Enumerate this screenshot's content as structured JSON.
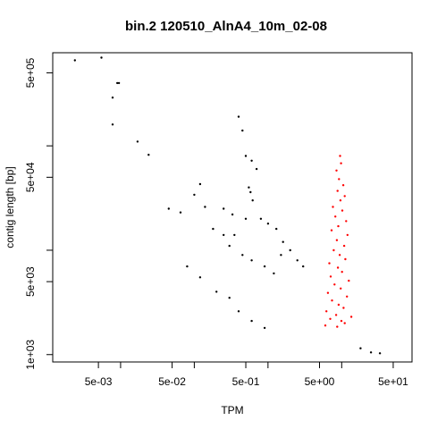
{
  "chart_data": {
    "type": "scatter",
    "title": "bin.2 120510_AlnA4_10m_02-08",
    "xlabel": "TPM",
    "ylabel": "contig length [bp]",
    "xscale": "log",
    "yscale": "log",
    "xlim": [
      0.0012,
      90
    ],
    "ylim": [
      850,
      780000
    ],
    "xticks": [
      {
        "value": 0.005,
        "label": "5e-03"
      },
      {
        "value": 0.05,
        "label": "5e-02"
      },
      {
        "value": 0.5,
        "label": "5e-01"
      },
      {
        "value": 5,
        "label": "5e+00"
      },
      {
        "value": 50,
        "label": "5e+01"
      }
    ],
    "xminor": [
      0.01,
      0.1,
      1,
      10
    ],
    "yticks": [
      {
        "value": 1000,
        "label": "1e+03"
      },
      {
        "value": 5000,
        "label": "5e+03"
      },
      {
        "value": 50000,
        "label": "5e+04"
      },
      {
        "value": 500000,
        "label": "5e+05"
      }
    ],
    "yminor": [
      10000,
      100000
    ],
    "grid": false,
    "legend": "none",
    "colors": {
      "default": "#000000",
      "highlight": "#ff0000"
    },
    "series": [
      {
        "color": "#000000",
        "points": [
          [
            0.0024,
            660000
          ],
          [
            0.0055,
            700000
          ],
          [
            0.009,
            400000
          ],
          [
            0.0095,
            400000
          ],
          [
            0.0078,
            290000
          ],
          [
            0.0078,
            160000
          ],
          [
            0.017,
            110000
          ],
          [
            0.024,
            82000
          ],
          [
            0.045,
            25000
          ],
          [
            0.065,
            23000
          ],
          [
            0.1,
            34000
          ],
          [
            0.14,
            26000
          ],
          [
            0.25,
            25000
          ],
          [
            0.33,
            22000
          ],
          [
            0.4,
            190000
          ],
          [
            0.45,
            140000
          ],
          [
            0.5,
            80000
          ],
          [
            0.6,
            72000
          ],
          [
            0.7,
            60000
          ],
          [
            0.55,
            40000
          ],
          [
            0.58,
            36000
          ],
          [
            0.62,
            30000
          ],
          [
            0.12,
            43000
          ],
          [
            0.18,
            16000
          ],
          [
            0.25,
            14000
          ],
          [
            0.35,
            14000
          ],
          [
            0.5,
            20000
          ],
          [
            0.8,
            20000
          ],
          [
            1.0,
            18000
          ],
          [
            1.3,
            16000
          ],
          [
            1.6,
            12000
          ],
          [
            2.0,
            10000
          ],
          [
            0.3,
            11000
          ],
          [
            0.45,
            9000
          ],
          [
            0.6,
            8000
          ],
          [
            0.9,
            7000
          ],
          [
            1.2,
            6000
          ],
          [
            1.5,
            9000
          ],
          [
            2.5,
            8000
          ],
          [
            3.0,
            7000
          ],
          [
            18,
            1150
          ],
          [
            25,
            1050
          ],
          [
            33,
            1030
          ],
          [
            0.08,
            7000
          ],
          [
            0.12,
            5500
          ],
          [
            0.2,
            4000
          ],
          [
            0.3,
            3500
          ],
          [
            0.4,
            2600
          ],
          [
            0.6,
            2100
          ],
          [
            0.9,
            1800
          ]
        ]
      },
      {
        "color": "#ff0000",
        "points": [
          [
            9.5,
            80000
          ],
          [
            9.8,
            68000
          ],
          [
            8.5,
            58000
          ],
          [
            9.2,
            48000
          ],
          [
            10.5,
            42000
          ],
          [
            8.8,
            37000
          ],
          [
            11.0,
            33000
          ],
          [
            9.6,
            30000
          ],
          [
            7.6,
            26000
          ],
          [
            10.2,
            24000
          ],
          [
            8.2,
            21000
          ],
          [
            11.5,
            19000
          ],
          [
            9.0,
            17000
          ],
          [
            7.3,
            15500
          ],
          [
            12.0,
            14000
          ],
          [
            8.6,
            12500
          ],
          [
            10.8,
            11000
          ],
          [
            7.8,
            10000
          ],
          [
            9.4,
            9000
          ],
          [
            11.2,
            8200
          ],
          [
            6.8,
            7500
          ],
          [
            8.9,
            6800
          ],
          [
            10.1,
            6200
          ],
          [
            7.1,
            5600
          ],
          [
            12.5,
            5100
          ],
          [
            8.0,
            4700
          ],
          [
            9.7,
            4300
          ],
          [
            6.5,
            3900
          ],
          [
            11.8,
            3600
          ],
          [
            7.4,
            3300
          ],
          [
            9.1,
            3000
          ],
          [
            10.6,
            2800
          ],
          [
            6.2,
            2600
          ],
          [
            8.4,
            2400
          ],
          [
            13.5,
            2300
          ],
          [
            7.0,
            2200
          ],
          [
            9.9,
            2100
          ],
          [
            11.0,
            2000
          ],
          [
            6.0,
            1900
          ],
          [
            8.7,
            1850
          ]
        ]
      }
    ]
  }
}
